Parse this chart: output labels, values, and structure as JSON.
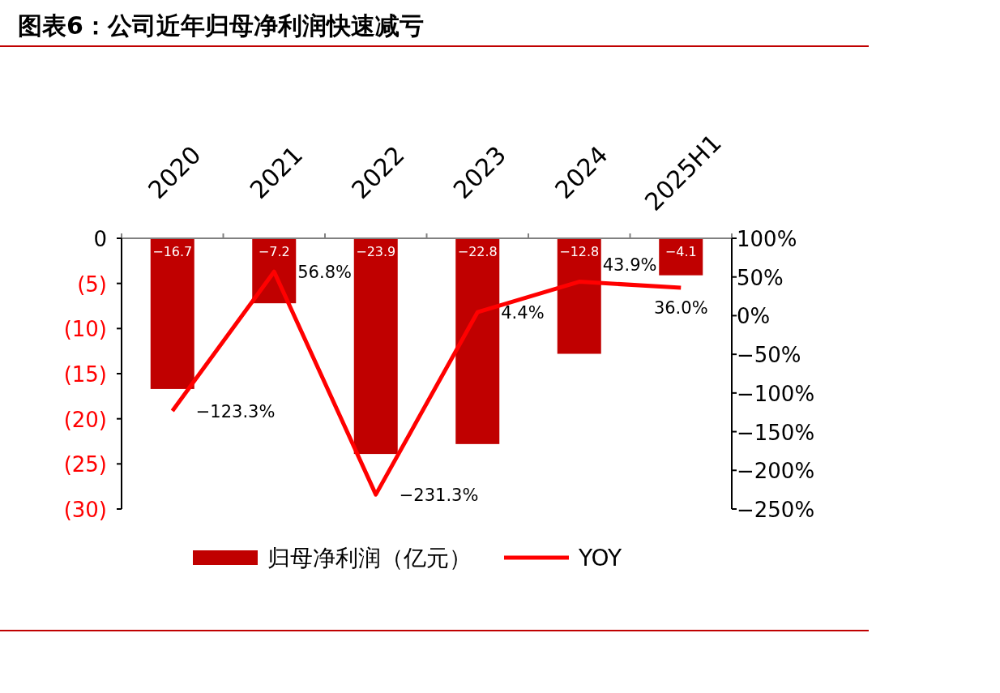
{
  "chart_data": {
    "type": "bar",
    "title": "图表6：公司近年归母净利润快速减亏",
    "categories": [
      "2020",
      "2021",
      "2022",
      "2023",
      "2024",
      "2025H1"
    ],
    "series": [
      {
        "name": "归母净利润（亿元）",
        "color": "#c00000",
        "values": [
          -16.7,
          -7.2,
          -23.9,
          -22.8,
          -12.8,
          -4.1
        ]
      },
      {
        "name": "YOY",
        "type": "line",
        "axis": "y2",
        "color": "#ff0000",
        "values": [
          -123.3,
          56.8,
          -231.3,
          4.4,
          43.9,
          36.0
        ],
        "value_labels": [
          "−123.3%",
          "56.8%",
          "−231.3%",
          "4.4%",
          "43.9%",
          "36.0%"
        ]
      }
    ],
    "ylim": [
      -30,
      0
    ],
    "yticks": [
      {
        "value": 0,
        "label": "0"
      },
      {
        "value": -5,
        "label": "(5)"
      },
      {
        "value": -10,
        "label": "(10)"
      },
      {
        "value": -15,
        "label": "(15)"
      },
      {
        "value": -20,
        "label": "(20)"
      },
      {
        "value": -25,
        "label": "(25)"
      },
      {
        "value": -30,
        "label": "(30)"
      }
    ],
    "y2lim": [
      -250,
      100
    ],
    "y2ticks": [
      {
        "value": 100,
        "label": "100%"
      },
      {
        "value": 50,
        "label": "50%"
      },
      {
        "value": 0,
        "label": "0%"
      },
      {
        "value": -50,
        "label": "−50%"
      },
      {
        "value": -100,
        "label": "−100%"
      },
      {
        "value": -150,
        "label": "−150%"
      },
      {
        "value": -200,
        "label": "−200%"
      },
      {
        "value": -250,
        "label": "−250%"
      }
    ],
    "data_labels": true,
    "legend": "bottom",
    "grid": false,
    "marker": "none",
    "line_style": "solid"
  }
}
